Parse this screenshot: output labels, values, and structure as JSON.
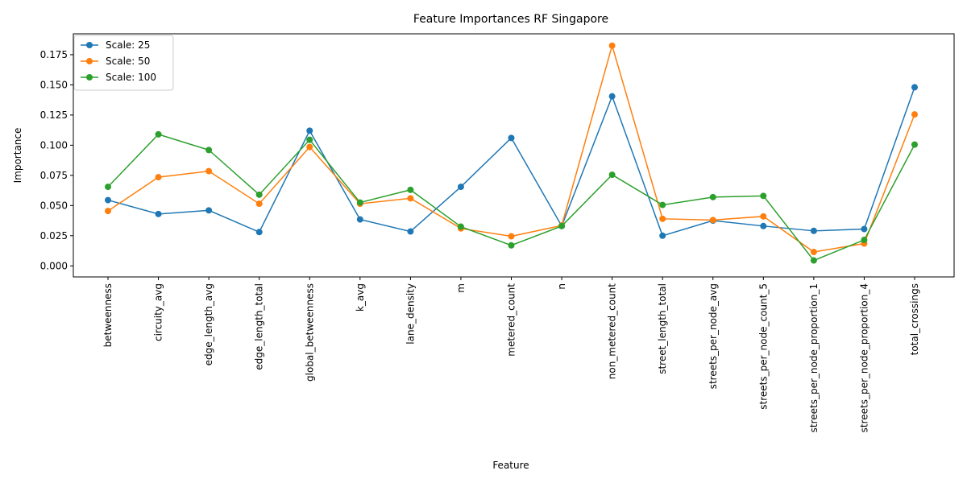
{
  "chart_data": {
    "type": "line",
    "title": "Feature Importances RF Singapore",
    "xlabel": "Feature",
    "ylabel": "Importance",
    "ylim": [
      -0.00915,
      0.1923
    ],
    "yticks": [
      0.0,
      0.025,
      0.05,
      0.075,
      0.1,
      0.125,
      0.15,
      0.175
    ],
    "ytick_labels": [
      "0.000",
      "0.025",
      "0.050",
      "0.075",
      "0.100",
      "0.125",
      "0.150",
      "0.175"
    ],
    "categories": [
      "betweenness",
      "circuity_avg",
      "edge_length_avg",
      "edge_length_total",
      "global_betweenness",
      "k_avg",
      "lane_density",
      "m",
      "metered_count",
      "n",
      "non_metered_count",
      "street_length_total",
      "streets_per_node_avg",
      "streets_per_node_count_5",
      "streets_per_node_proportion_1",
      "streets_per_node_proportion_4",
      "total_crossings"
    ],
    "series": [
      {
        "name": "Scale: 25",
        "color": "#1f77b4",
        "values": [
          0.0545,
          0.043,
          0.046,
          0.028,
          0.112,
          0.0385,
          0.0285,
          0.0655,
          0.106,
          0.033,
          0.1405,
          0.025,
          0.0375,
          0.033,
          0.029,
          0.0305,
          0.148
        ]
      },
      {
        "name": "Scale: 50",
        "color": "#ff7f0e",
        "values": [
          0.0455,
          0.0735,
          0.0785,
          0.0515,
          0.0985,
          0.0515,
          0.056,
          0.031,
          0.0245,
          0.0335,
          0.1825,
          0.039,
          0.038,
          0.041,
          0.0115,
          0.0185,
          0.1255
        ]
      },
      {
        "name": "Scale: 100",
        "color": "#2ca02c",
        "values": [
          0.0655,
          0.109,
          0.096,
          0.059,
          0.1045,
          0.0525,
          0.063,
          0.0325,
          0.017,
          0.033,
          0.0755,
          0.0505,
          0.057,
          0.058,
          0.0045,
          0.0215,
          0.1005
        ]
      }
    ],
    "grid": false,
    "legend_position": "top-left"
  }
}
